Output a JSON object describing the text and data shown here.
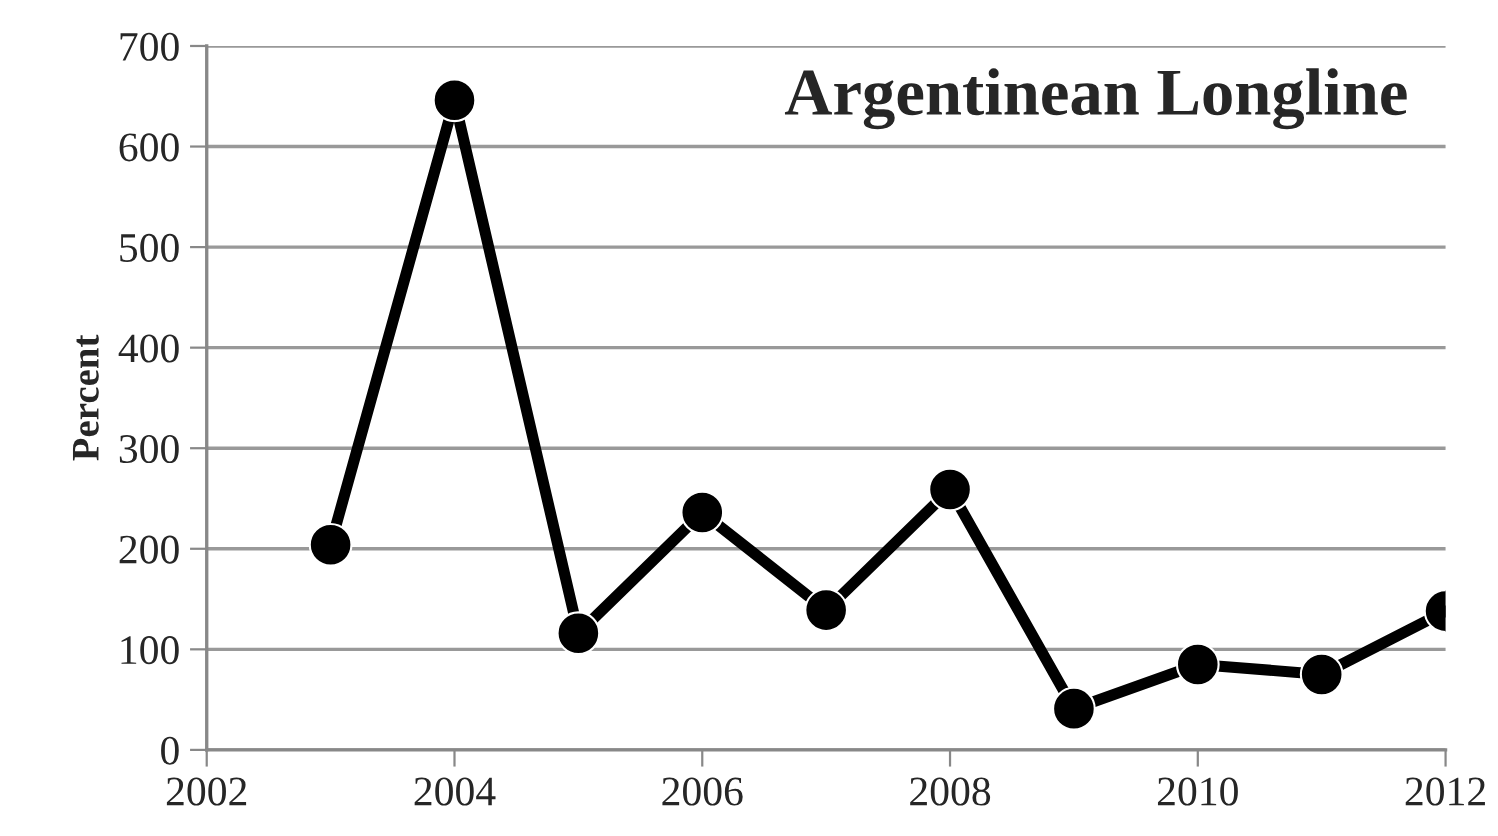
{
  "chart_data": {
    "type": "line",
    "title": "Argentinean Longline",
    "ylabel": "Percent",
    "x": [
      2003,
      2004,
      2005,
      2006,
      2007,
      2008,
      2009,
      2010,
      2011,
      2012
    ],
    "series": [
      {
        "color": "#000000",
        "values": [
          204,
          646,
          116,
          236,
          139,
          259,
          41,
          85,
          75,
          138
        ]
      }
    ],
    "xlim": [
      2002,
      2012
    ],
    "xticks": [
      2002,
      2004,
      2006,
      2008,
      2010,
      2012
    ],
    "ylim": [
      0,
      700
    ],
    "yticks": [
      0,
      100,
      200,
      300,
      400,
      500,
      600,
      700
    ],
    "grid": "y",
    "marker": "circle",
    "line_style": "solid"
  }
}
